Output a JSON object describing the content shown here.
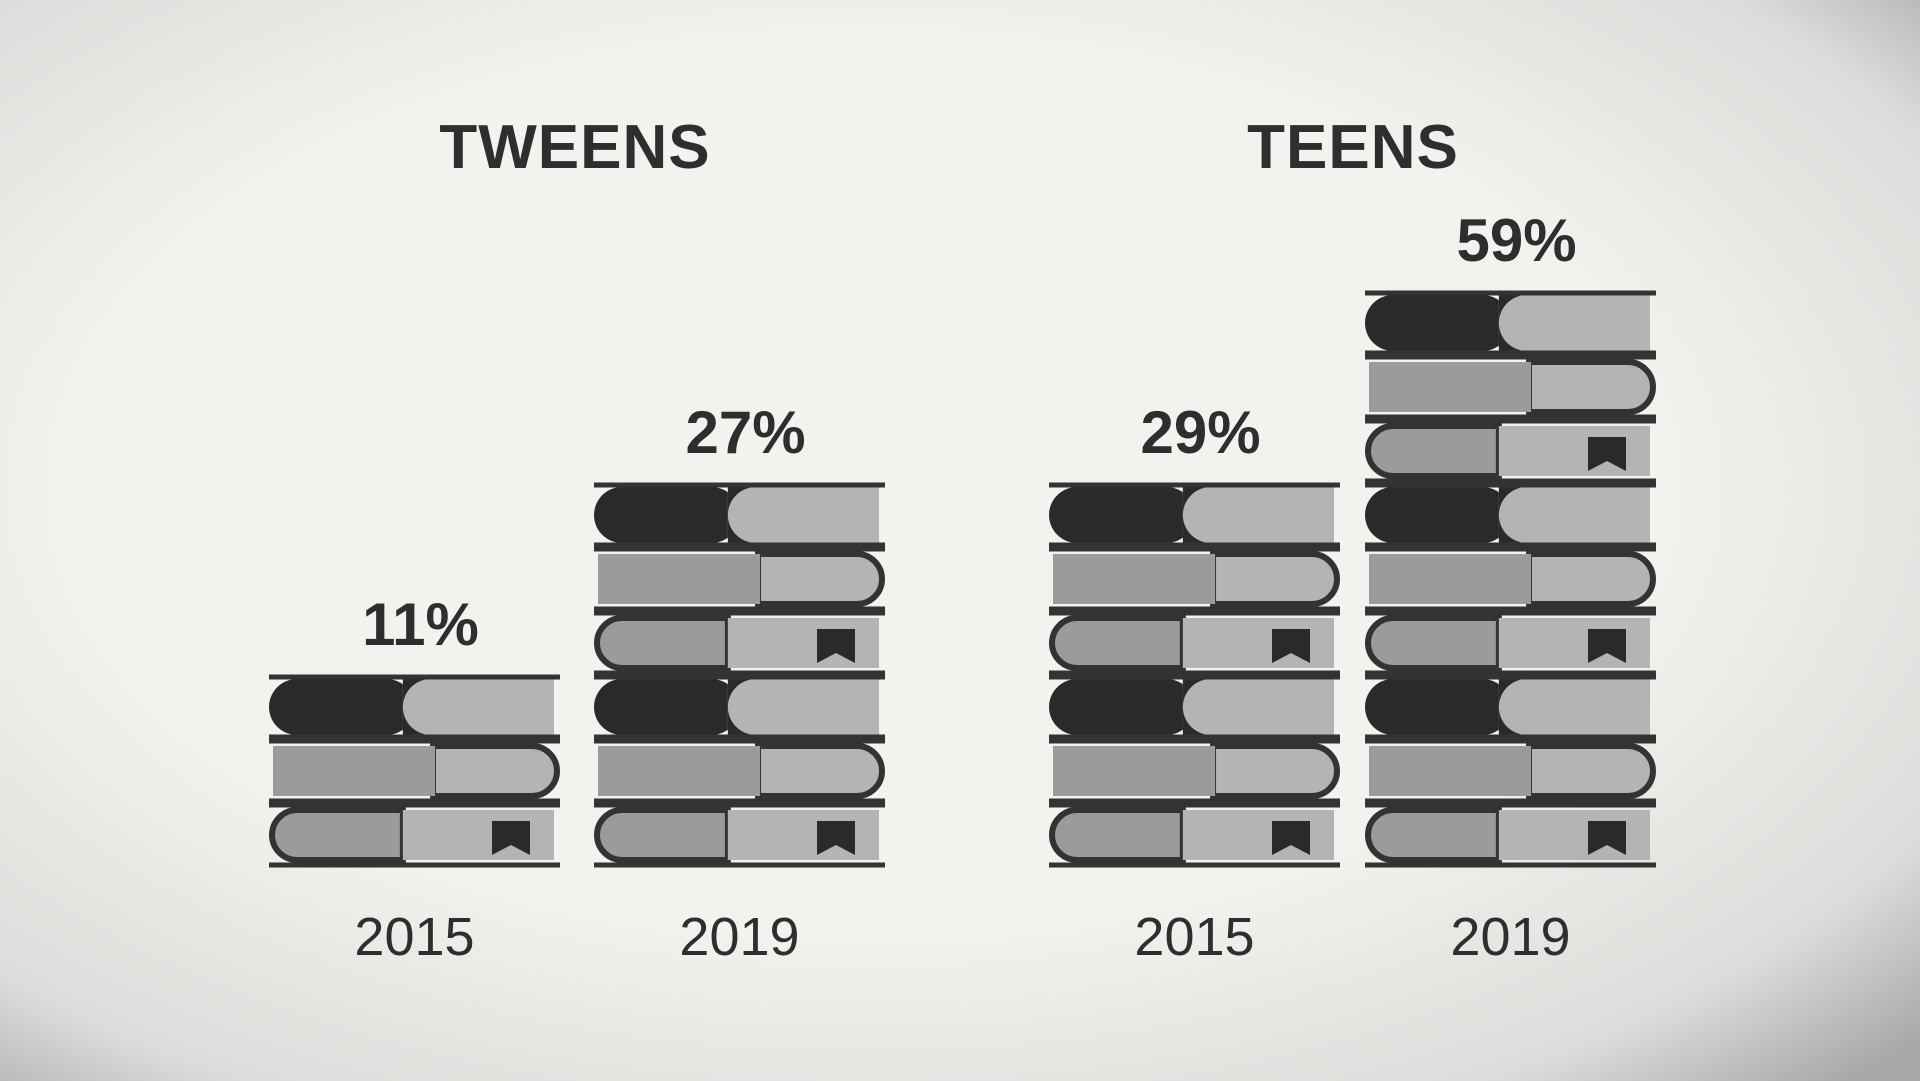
{
  "chart_data": [
    {
      "type": "pictograph",
      "title": "TWEENS",
      "categories": [
        "2015",
        "2019"
      ],
      "values": [
        11,
        27
      ],
      "value_labels": [
        "11%",
        "27%"
      ]
    },
    {
      "type": "pictograph",
      "title": "TEENS",
      "categories": [
        "2015",
        "2019"
      ],
      "values": [
        29,
        59
      ],
      "value_labels": [
        "29%",
        "59%"
      ]
    }
  ]
}
